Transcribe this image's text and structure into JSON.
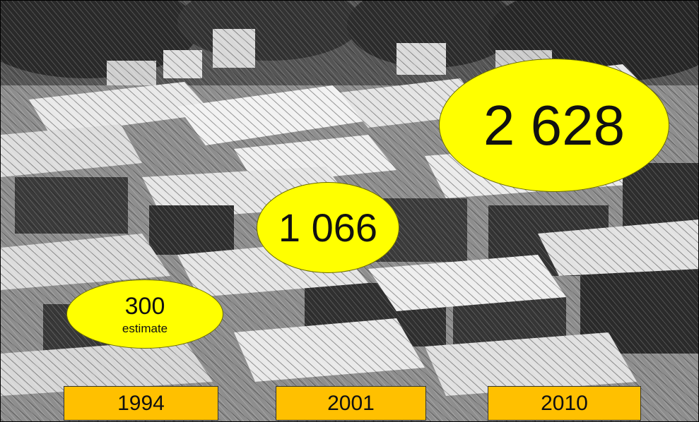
{
  "photo": {
    "subject": "shack-settlement-photo"
  },
  "colors": {
    "bubble_fill": "#ffff00",
    "year_label_fill": "#ffc000",
    "text": "#111111"
  },
  "milestones": [
    {
      "year": "1994",
      "value": "300",
      "note": "estimate"
    },
    {
      "year": "2001",
      "value": "1 066"
    },
    {
      "year": "2010",
      "value": "2 628"
    }
  ]
}
